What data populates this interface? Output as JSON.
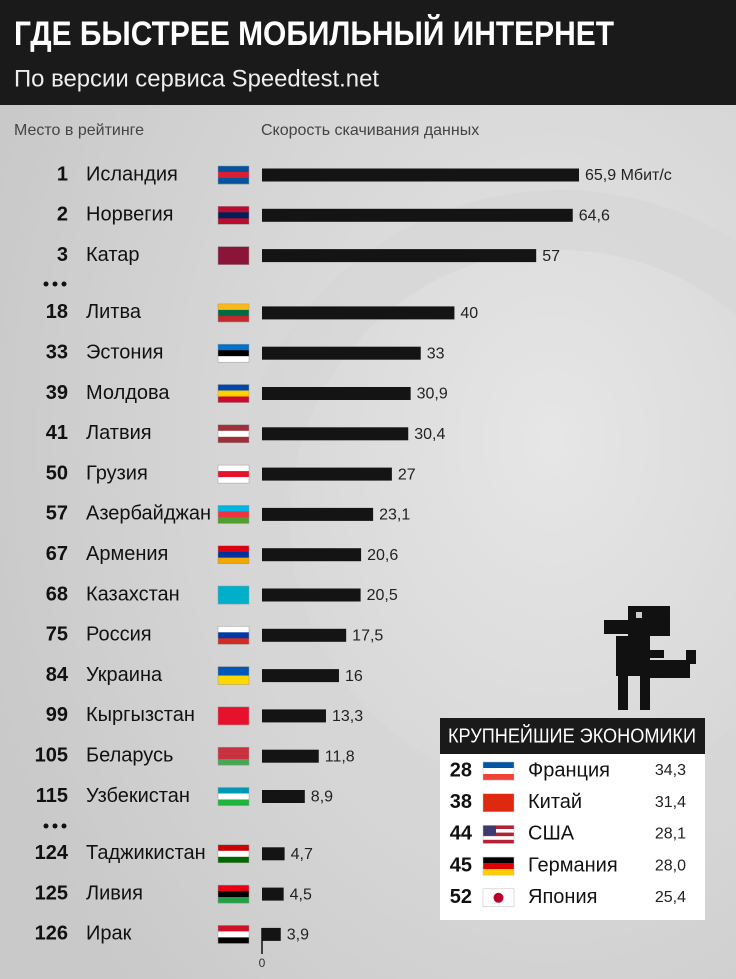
{
  "chart_data": {
    "type": "bar",
    "title": "ГДЕ БЫСТРЕЕ МОБИЛЬНЫЙ ИНТЕРНЕТ",
    "subtitle": "По версии сервиса Speedtest.net",
    "rank_label": "Место в рейтинге",
    "value_axis_label": "Скорость скачивания данных",
    "ranks": [
      1,
      2,
      3,
      18,
      33,
      39,
      41,
      50,
      57,
      67,
      68,
      75,
      84,
      99,
      105,
      115,
      124,
      125,
      126
    ],
    "categories": [
      "Исландия",
      "Норвегия",
      "Катар",
      "Литва",
      "Эстония",
      "Молдова",
      "Латвия",
      "Грузия",
      "Азербайджан",
      "Армения",
      "Казахстан",
      "Россия",
      "Украина",
      "Кыргызстан",
      "Беларусь",
      "Узбекистан",
      "Таджикистан",
      "Ливия",
      "Ирак"
    ],
    "values": [
      65.9,
      64.6,
      57,
      40,
      33,
      30.9,
      30.4,
      27,
      23.1,
      20.6,
      20.5,
      17.5,
      16,
      13.3,
      11.8,
      8.9,
      4.7,
      4.5,
      3.9
    ],
    "value_labels": [
      "65,9 Мбит/с",
      "64,6",
      "57",
      "40",
      "33",
      "30,9",
      "30,4",
      "27",
      "23,1",
      "20,6",
      "20,5",
      "17,5",
      "16",
      "13,3",
      "11,8",
      "8,9",
      "4,7",
      "4,5",
      "3,9"
    ],
    "color": "#141414",
    "xlim": [
      0,
      70
    ],
    "xticks": [
      0
    ]
  },
  "economies": {
    "title": "КРУПНЕЙШИЕ ЭКОНОМИКИ",
    "rows": [
      [
        28,
        "Франция",
        "34,3"
      ],
      [
        38,
        "Китай",
        "31,4"
      ],
      [
        44,
        "США",
        "28,1"
      ],
      [
        45,
        "Германия",
        "28,0"
      ],
      [
        52,
        "Япония",
        "25,4"
      ]
    ]
  }
}
